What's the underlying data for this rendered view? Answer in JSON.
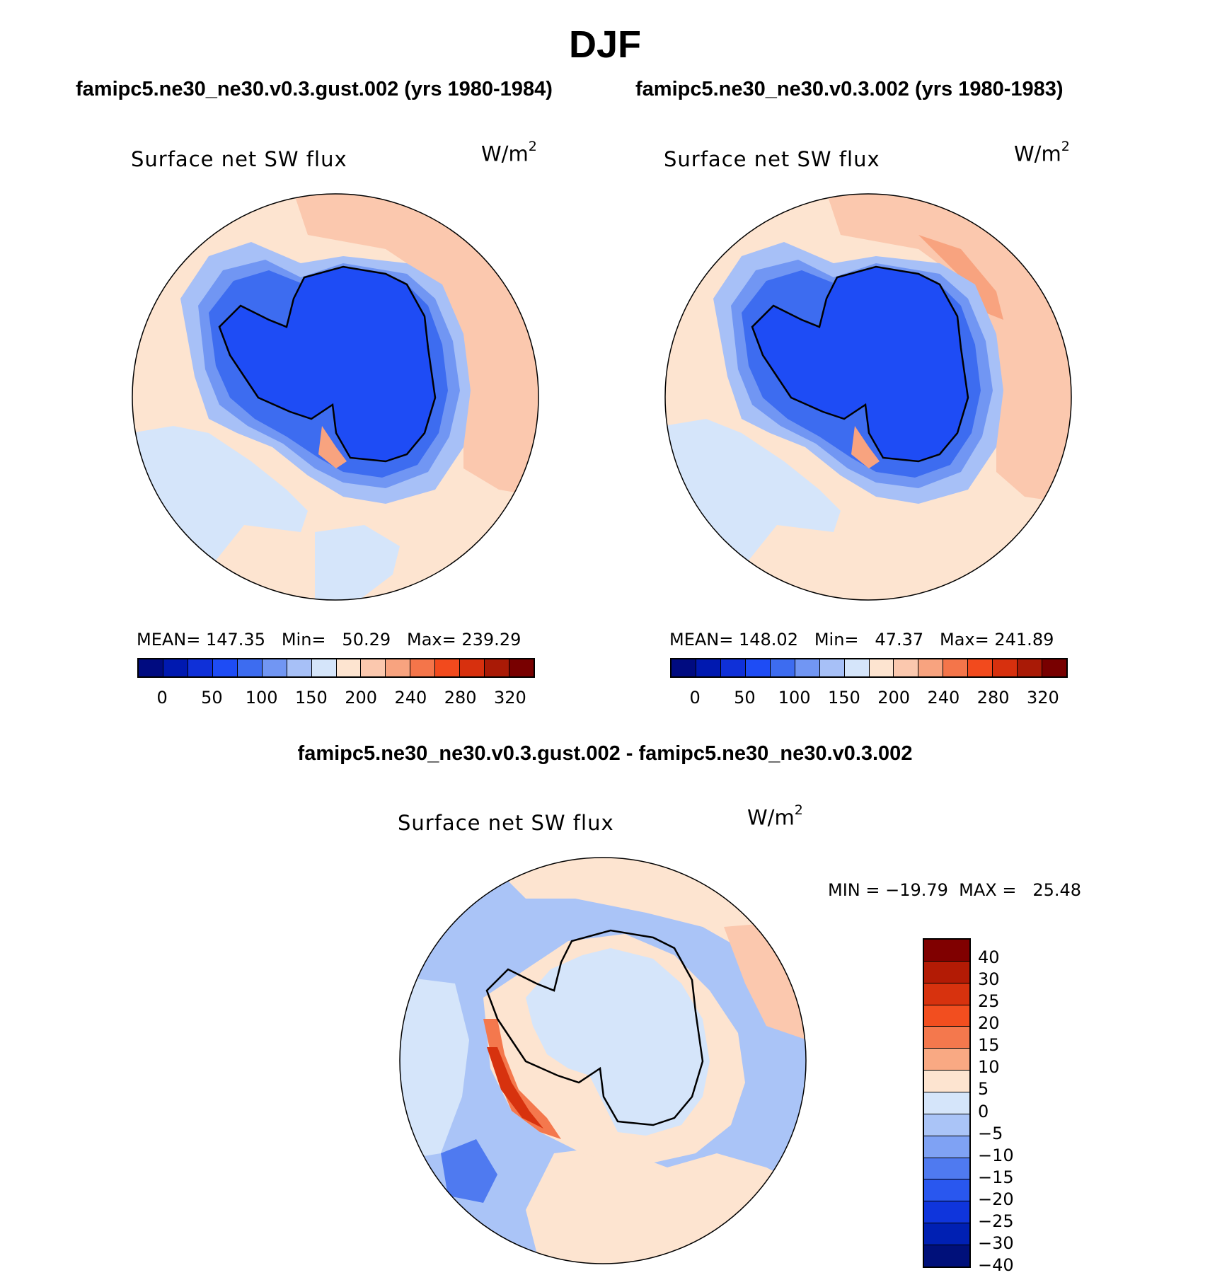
{
  "season_title": "DJF",
  "panels": {
    "left": {
      "case_title": "famipc5.ne30_ne30.v0.3.gust.002 (yrs 1980-1984)",
      "field": "Surface net SW flux",
      "units_base": "W/m",
      "units_exp": "2",
      "stats": "MEAN= 147.35   Min=   50.29   Max= 239.29",
      "mean": 147.35,
      "min": 50.29,
      "max": 239.29
    },
    "right": {
      "case_title": "famipc5.ne30_ne30.v0.3.002 (yrs 1980-1983)",
      "field": "Surface net SW flux",
      "units_base": "W/m",
      "units_exp": "2",
      "stats": "MEAN= 148.02   Min=   47.37   Max= 241.89",
      "mean": 148.02,
      "min": 47.37,
      "max": 241.89
    },
    "diff": {
      "case_title": "famipc5.ne30_ne30.v0.3.gust.002 - famipc5.ne30_ne30.v0.3.002",
      "field": "Surface net SW flux",
      "units_base": "W/m",
      "units_exp": "2",
      "stats": "MIN = −19.79  MAX =   25.48",
      "min": -19.79,
      "max": 25.48
    }
  },
  "colorbar_main": {
    "levels": [
      "0",
      "50",
      "100",
      "150",
      "200",
      "240",
      "280",
      "320"
    ],
    "colors": [
      "#000b80",
      "#0019b0",
      "#0f30d8",
      "#1e4cf5",
      "#3d6cf0",
      "#7196f3",
      "#a7c0f7",
      "#d5e5fa",
      "#fde4d0",
      "#fbc8ae",
      "#f8a37f",
      "#f4754a",
      "#f24a1d",
      "#d7300e",
      "#a91a06",
      "#780000"
    ]
  },
  "colorbar_diff": {
    "levels": [
      "40",
      "30",
      "25",
      "20",
      "15",
      "10",
      "5",
      "0",
      "−5",
      "−10",
      "−15",
      "−20",
      "−25",
      "−30",
      "−40"
    ],
    "colors": [
      "#800000",
      "#b31b05",
      "#d7320e",
      "#f24e1f",
      "#f4784d",
      "#f9a983",
      "#fde4d0",
      "#d5e5fa",
      "#aac4f7",
      "#7fa2f4",
      "#4f7af0",
      "#2957ef",
      "#0f35dc",
      "#0020b3",
      "#00107a"
    ]
  },
  "chart_data": [
    {
      "type": "heatmap",
      "title": "famipc5.ne30_ne30.v0.3.gust.002 (yrs 1980-1984)",
      "projection": "south polar stereographic",
      "variable": "Surface net SW flux",
      "units": "W/m2",
      "mean": 147.35,
      "min": 50.29,
      "max": 239.29,
      "contour_levels": [
        0,
        25,
        50,
        75,
        100,
        125,
        150,
        175,
        200,
        220,
        240,
        260,
        280,
        300,
        320
      ]
    },
    {
      "type": "heatmap",
      "title": "famipc5.ne30_ne30.v0.3.002 (yrs 1980-1983)",
      "projection": "south polar stereographic",
      "variable": "Surface net SW flux",
      "units": "W/m2",
      "mean": 148.02,
      "min": 47.37,
      "max": 241.89,
      "contour_levels": [
        0,
        25,
        50,
        75,
        100,
        125,
        150,
        175,
        200,
        220,
        240,
        260,
        280,
        300,
        320
      ]
    },
    {
      "type": "heatmap",
      "title": "famipc5.ne30_ne30.v0.3.gust.002 - famipc5.ne30_ne30.v0.3.002",
      "projection": "south polar stereographic",
      "variable": "Surface net SW flux",
      "units": "W/m2",
      "min": -19.79,
      "max": 25.48,
      "contour_levels": [
        -40,
        -30,
        -25,
        -20,
        -15,
        -10,
        -5,
        0,
        5,
        10,
        15,
        20,
        25,
        30,
        40
      ]
    }
  ]
}
